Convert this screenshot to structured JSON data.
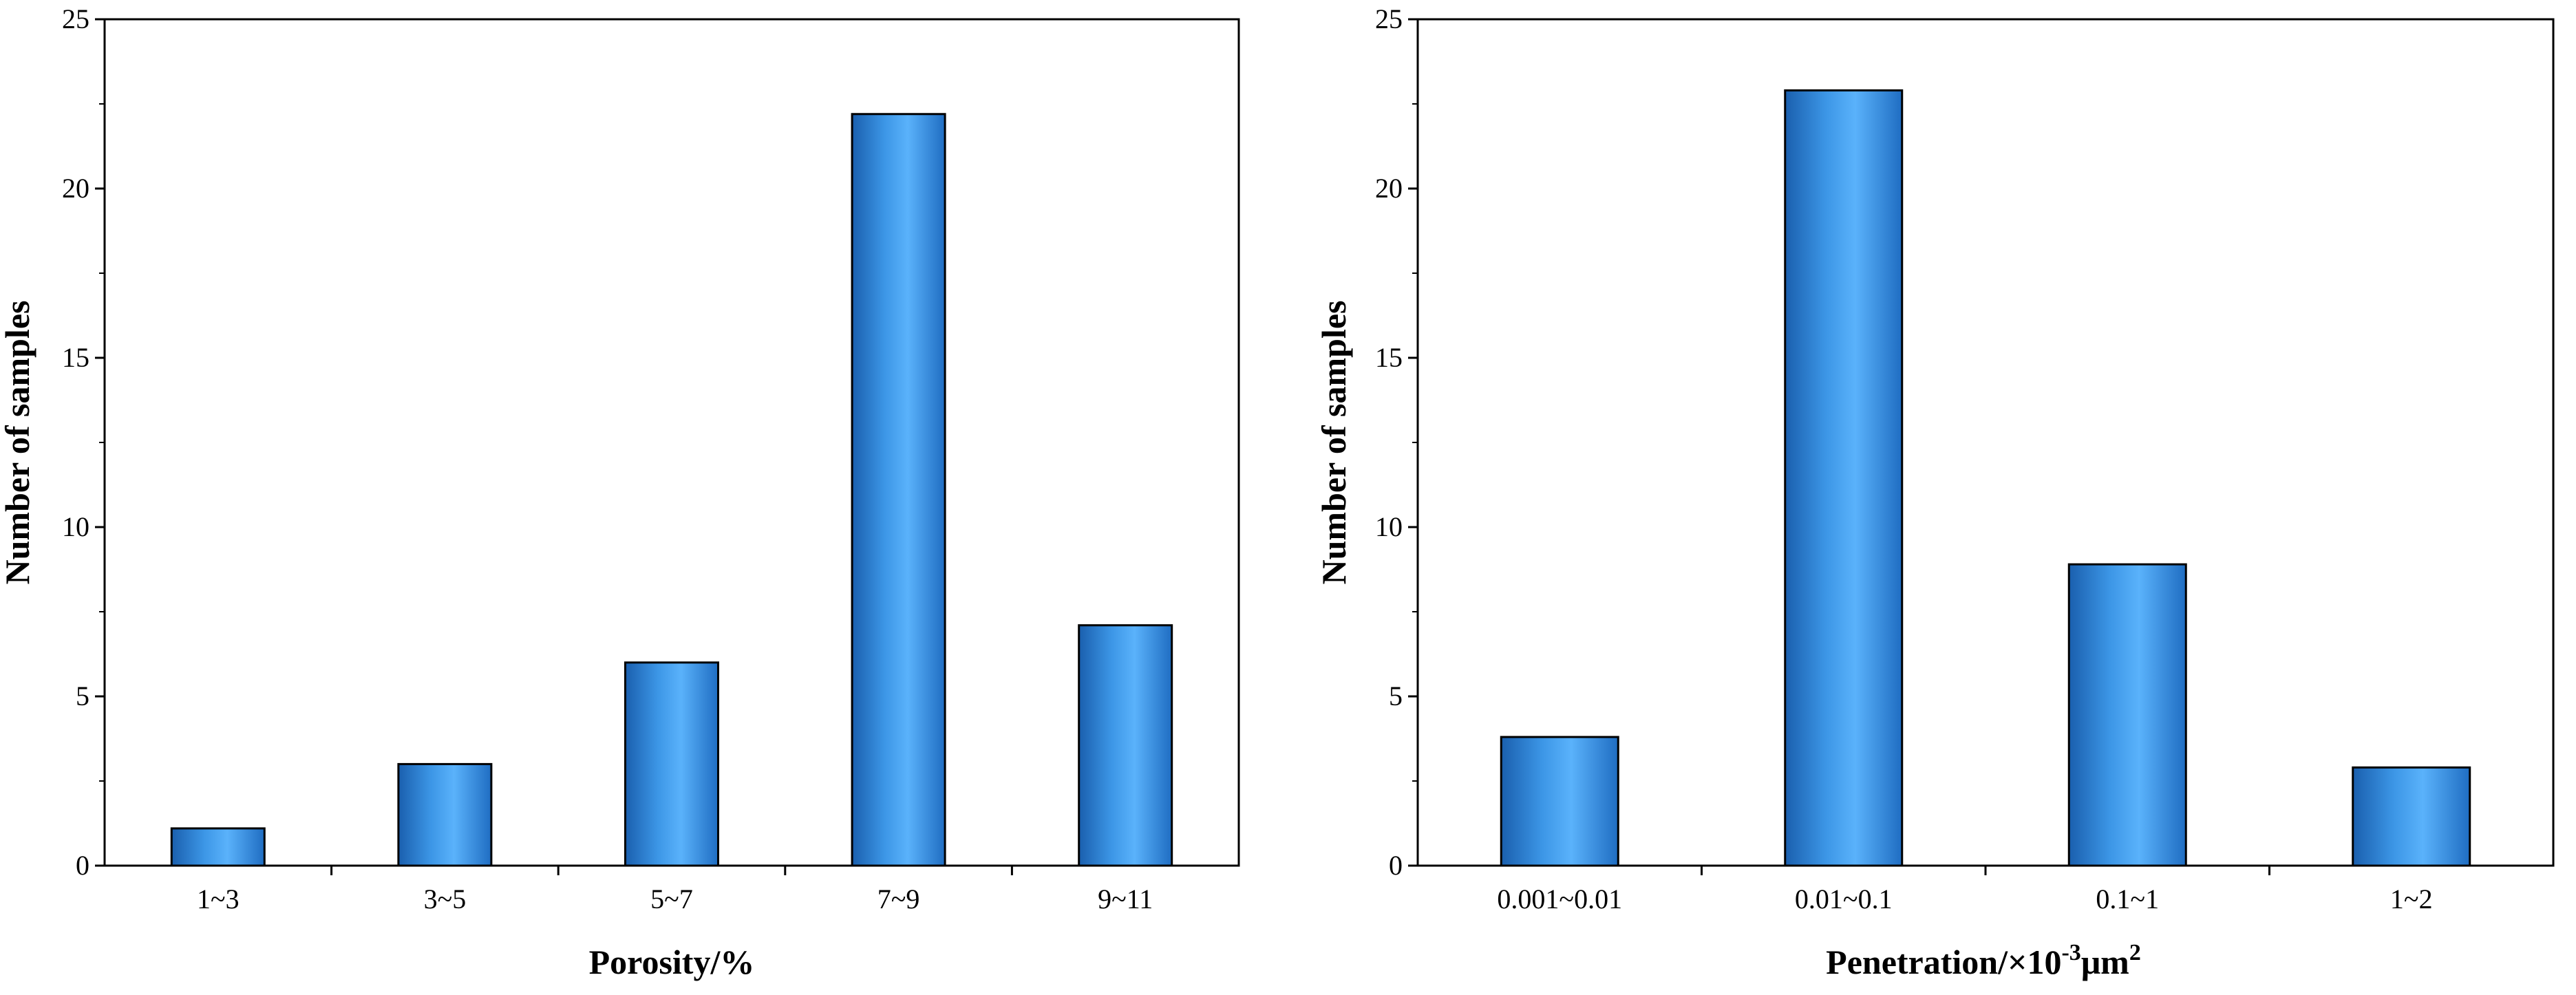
{
  "chart_data": [
    {
      "type": "bar",
      "categories": [
        "1~3",
        "3~5",
        "5~7",
        "7~9",
        "9~11"
      ],
      "values": [
        1.1,
        3.0,
        6.0,
        22.2,
        7.1
      ],
      "xlabel": "Porosity/%",
      "ylabel": "Number of samples",
      "ylim": [
        0,
        25
      ],
      "yticks": [
        "0",
        "5",
        "10",
        "15",
        "20",
        "25"
      ],
      "grid": false,
      "bar_color": "#3c96e6"
    },
    {
      "type": "bar",
      "categories": [
        "0.001~0.01",
        "0.01~0.1",
        "0.1~1",
        "1~2"
      ],
      "values": [
        3.8,
        22.9,
        8.9,
        2.9
      ],
      "xlabel": "Penetration/×10",
      "xlabel_sup": "-3",
      "xlabel_unit": "μm",
      "xlabel_unit_sup": "2",
      "ylabel": "Number of samples",
      "ylim": [
        0,
        25
      ],
      "yticks": [
        "0",
        "5",
        "10",
        "15",
        "20",
        "25"
      ],
      "grid": false,
      "bar_color": "#3c96e6"
    }
  ]
}
